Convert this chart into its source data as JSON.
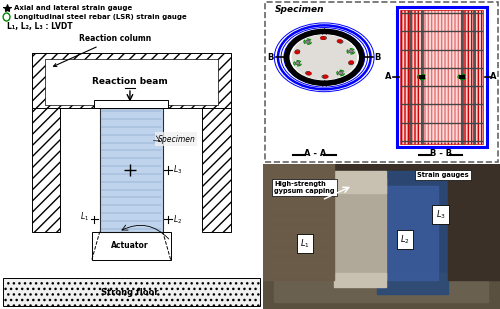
{
  "legend": {
    "star_text": "Axial and lateral strain gauge",
    "circle_text": "Longitudinal steel rebar (LSR) strain gauge",
    "lvdt_text": "L₁, L₂, L₃ : LVDT"
  },
  "left_panel": {
    "reaction_column": "Reaction column",
    "reaction_beam": "Reaction beam",
    "specimen": "Specimen",
    "actuator": "Actuator",
    "strong_floor": "Strong floor",
    "l1": "L₁",
    "l2": "L₂",
    "l3": "L₃"
  },
  "top_right": {
    "specimen": "Specimen",
    "aa": "A - A",
    "bb": "B - B",
    "a": "A",
    "b": "B"
  },
  "bottom_right": {
    "label1": "High-strength\ngypsum capping",
    "label2": "Strain gauges",
    "l1": "L₁",
    "l2": "L₂",
    "l3": "L₃"
  },
  "colors": {
    "specimen_blue": "#b0c8e8",
    "hatch_face": "#ffffff",
    "floor_face": "#e8e8e8",
    "red_dot": "#dd0000",
    "green_circle": "#008800",
    "blue_ring": "#0000cc",
    "photo_dark": "#4a4030",
    "photo_mid": "#7a6a50",
    "photo_blue": "#3a5a8a",
    "photo_gray": "#aaa090"
  }
}
